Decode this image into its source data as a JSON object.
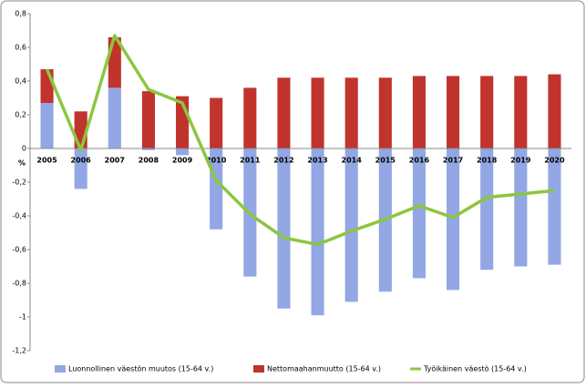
{
  "chart_data": {
    "type": "bar",
    "y_unit_label": "%",
    "categories": [
      "2005",
      "2006",
      "2007",
      "2008",
      "2009",
      "2010",
      "2011",
      "2012",
      "2013",
      "2014",
      "2015",
      "2016",
      "2017",
      "2018",
      "2019",
      "2020"
    ],
    "series": [
      {
        "name": "Luonnollinen väestön muutos (15-64 v.)",
        "type": "bar",
        "color": "#92a7e3",
        "values": [
          0.27,
          -0.24,
          0.36,
          -0.01,
          -0.04,
          -0.48,
          -0.76,
          -0.95,
          -0.99,
          -0.91,
          -0.85,
          -0.77,
          -0.84,
          -0.72,
          -0.7,
          -0.69
        ]
      },
      {
        "name": "Nettomaahanmuutto (15-64 v.)",
        "type": "bar",
        "color": "#c0342d",
        "values": [
          0.2,
          0.22,
          0.3,
          0.34,
          0.31,
          0.3,
          0.36,
          0.42,
          0.42,
          0.42,
          0.42,
          0.43,
          0.43,
          0.43,
          0.43,
          0.44
        ]
      },
      {
        "name": "Työikäinen väestö (15-64 v.)",
        "type": "line",
        "color": "#8cc63f",
        "values": [
          0.47,
          -0.01,
          0.67,
          0.35,
          0.27,
          -0.19,
          -0.39,
          -0.53,
          -0.57,
          -0.49,
          -0.42,
          -0.34,
          -0.41,
          -0.29,
          -0.27,
          -0.25
        ]
      }
    ],
    "ylim": [
      -1.2,
      0.8
    ],
    "yticks": [
      {
        "value": 0.8,
        "label": "0,8"
      },
      {
        "value": 0.6,
        "label": "0,6"
      },
      {
        "value": 0.4,
        "label": "0,4"
      },
      {
        "value": 0.2,
        "label": "0,2"
      },
      0,
      {
        "value": -0.2,
        "label": "-0,2"
      },
      {
        "value": -0.4,
        "label": "-0,4"
      },
      {
        "value": -0.6,
        "label": "-0,6"
      },
      {
        "value": -0.8,
        "label": "-0,8"
      },
      -1,
      {
        "value": -1.2,
        "label": "-1,2"
      }
    ],
    "grid": false,
    "legend": "bottom"
  }
}
